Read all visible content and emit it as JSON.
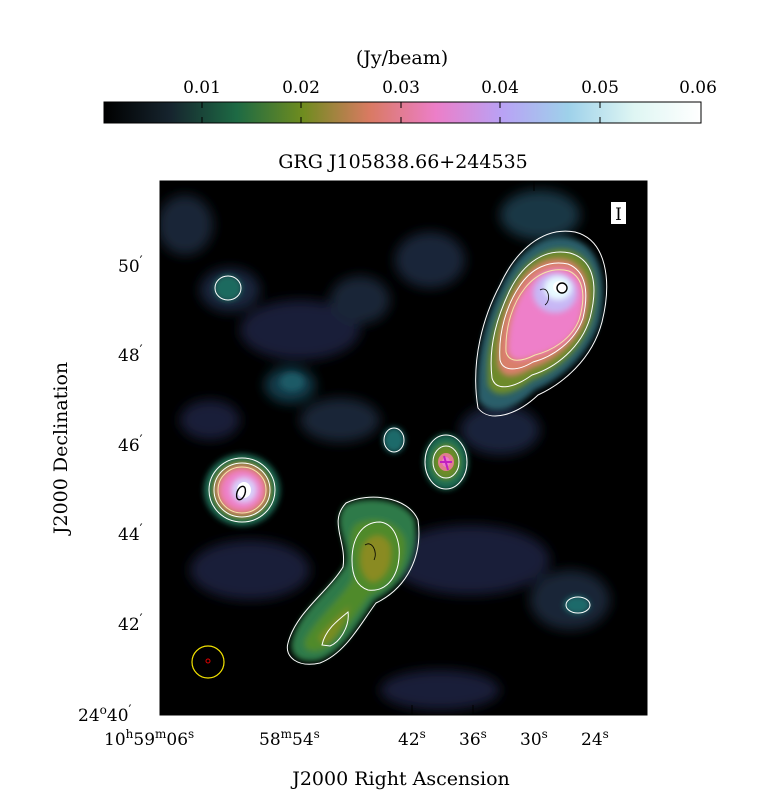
{
  "colorbar": {
    "unit_label": "(Jy/beam)",
    "range": [
      0.0,
      0.06
    ],
    "ticks": [
      "0.01",
      "0.02",
      "0.03",
      "0.04",
      "0.05",
      "0.06"
    ],
    "colormap": [
      "#000000",
      "#16242e",
      "#1d6a44",
      "#6f8c1f",
      "#d97a62",
      "#ec7ec8",
      "#b9a2f5",
      "#9ed1ea",
      "#dff6f3",
      "#ffffff"
    ]
  },
  "plot": {
    "title": "GRG J105838.66+244535",
    "stokes_label": "I",
    "xlabel": "J2000 Right Ascension",
    "ylabel": "J2000 Declination",
    "x_ticks": [
      {
        "h": "10",
        "m": "59",
        "s": "06"
      },
      {
        "m": "58",
        "s": "54"
      },
      {
        "s": "42"
      },
      {
        "s": "36"
      },
      {
        "s": "30"
      },
      {
        "s": "24"
      }
    ],
    "y_ticks": [
      {
        "d": "",
        "m": "50"
      },
      {
        "d": "",
        "m": "48"
      },
      {
        "d": "",
        "m": "46"
      },
      {
        "d": "",
        "m": "44"
      },
      {
        "d": "",
        "m": "42"
      },
      {
        "d": "24",
        "m": "40"
      }
    ],
    "contour_color": "#ffffff",
    "beam_color": "#f2e200",
    "beam_center_color": "#e00000"
  }
}
